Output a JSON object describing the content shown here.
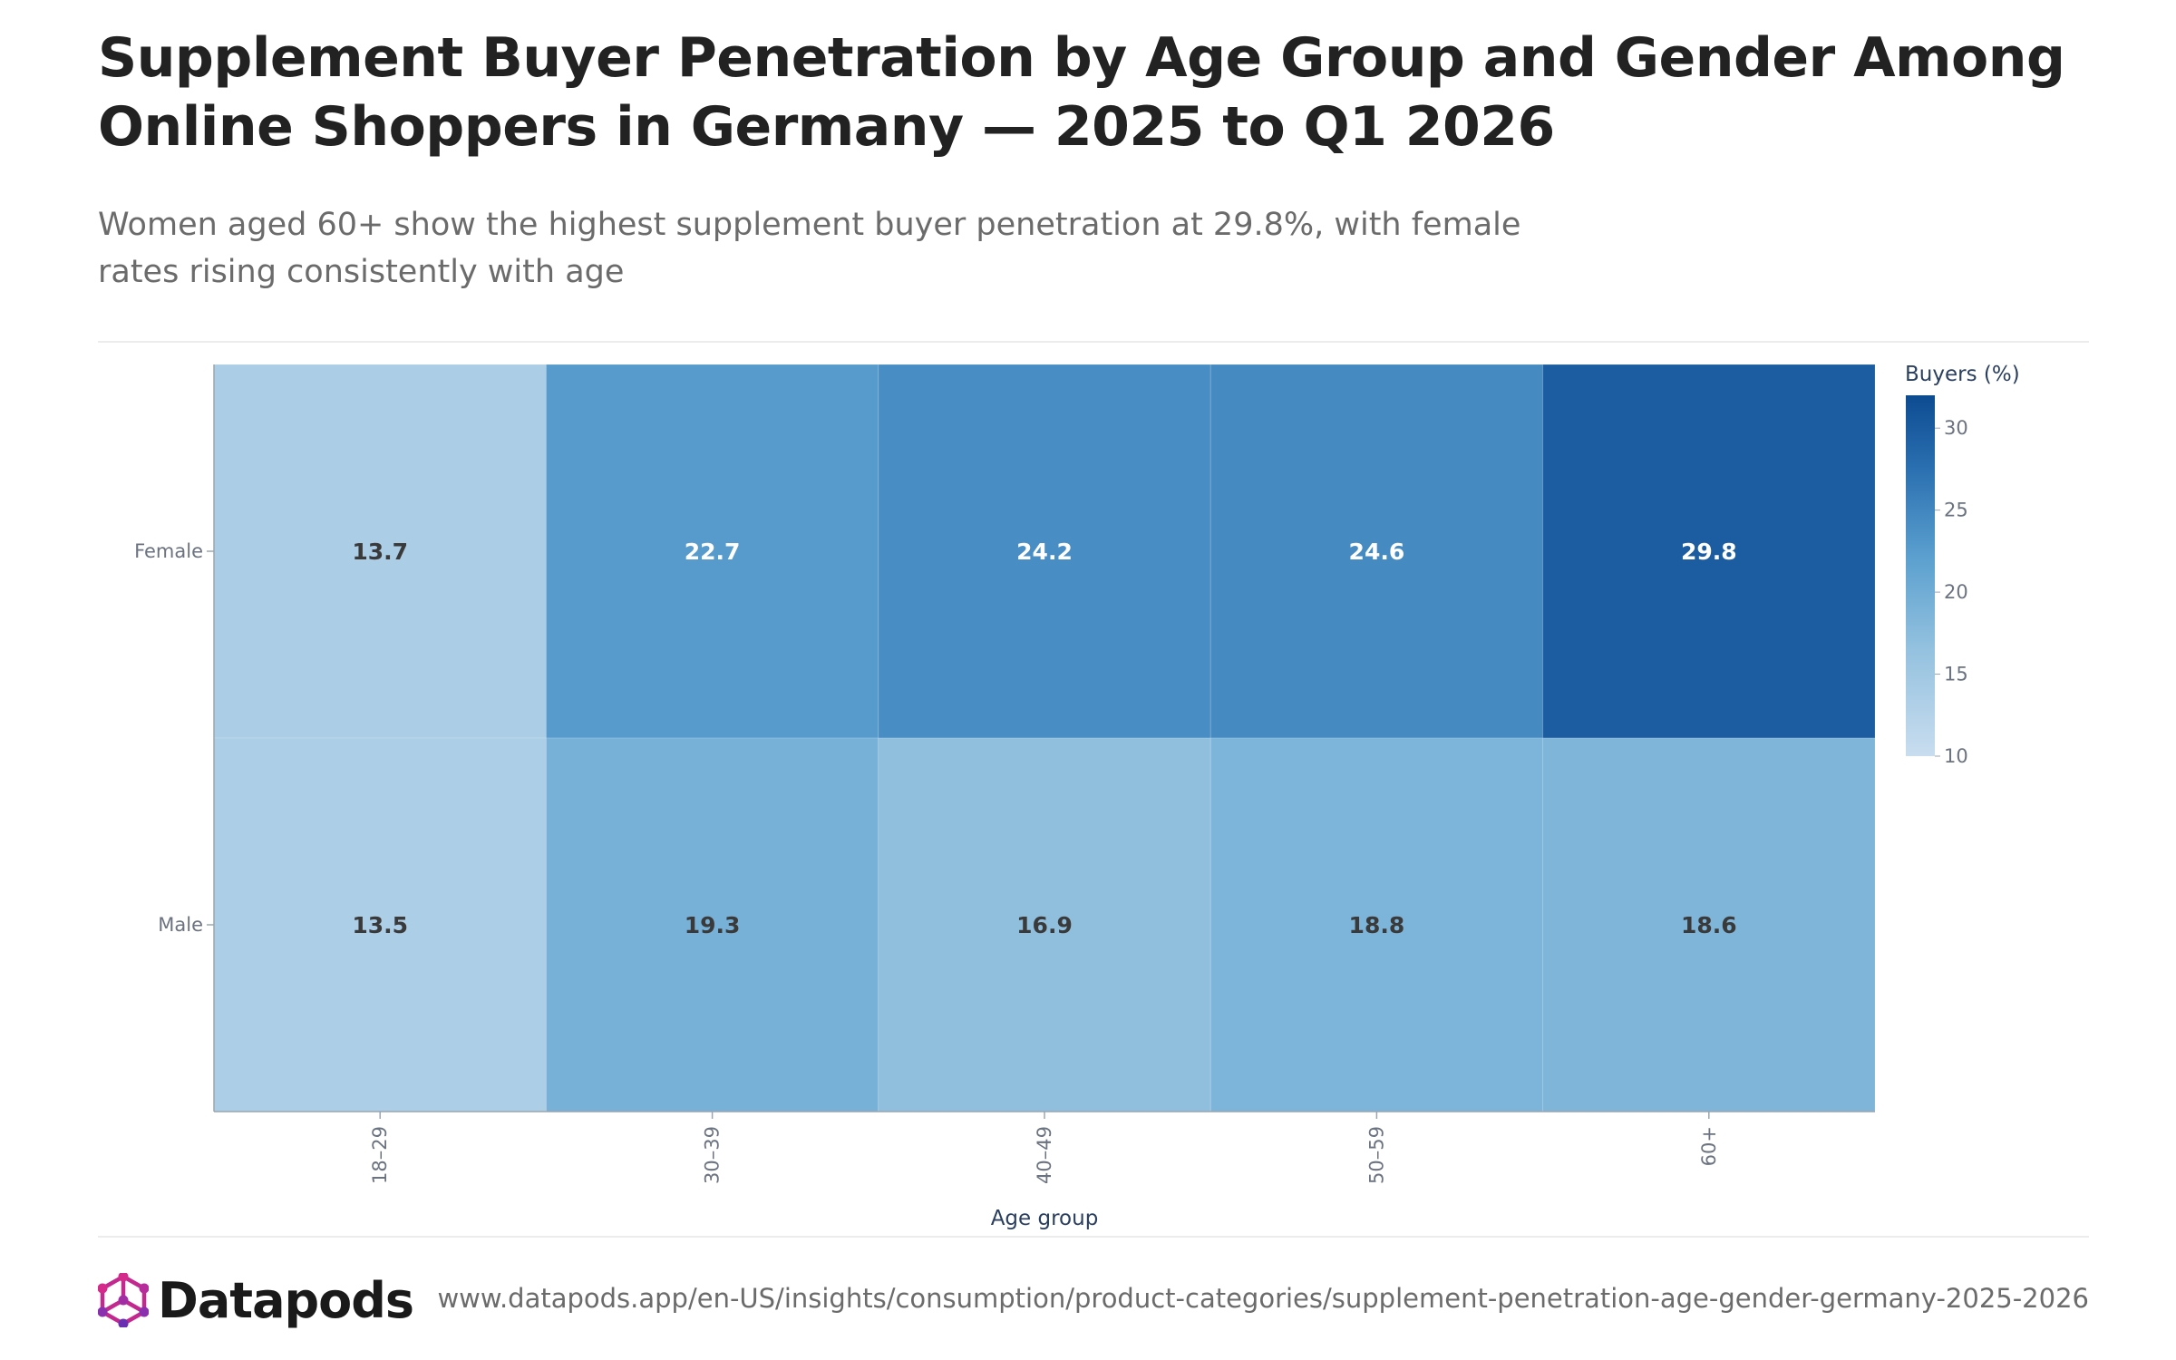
{
  "header": {
    "title": "Supplement Buyer Penetration by Age Group and Gender Among Online Shoppers in Germany — 2025 to Q1 2026",
    "subtitle": "Women aged 60+ show the highest supplement buyer penetration at 29.8%, with female rates rising consistently with age"
  },
  "chart_data": {
    "type": "heatmap",
    "x_categories": [
      "18–29",
      "30–39",
      "40–49",
      "50–59",
      "60+"
    ],
    "y_categories": [
      "Female",
      "Male"
    ],
    "values": [
      [
        13.7,
        22.7,
        24.2,
        24.6,
        29.8
      ],
      [
        13.5,
        19.3,
        16.9,
        18.8,
        18.6
      ]
    ],
    "xlabel": "Age group",
    "ylabel": "",
    "colorbar": {
      "title": "Buyers (%)",
      "range": [
        10,
        32
      ],
      "ticks": [
        10,
        15,
        20,
        25,
        30
      ],
      "colors": [
        "#c6dbef",
        "#084594"
      ]
    },
    "value_labels": true
  },
  "footer": {
    "brand": "Datapods",
    "url": "www.datapods.app/en-US/insights/consumption/product-categories/supplement-penetration-age-gender-germany-2025-2026",
    "logo_icon": "hexagon-network-icon",
    "brand_colors": [
      "#d42a8b",
      "#6a2fb3"
    ]
  }
}
